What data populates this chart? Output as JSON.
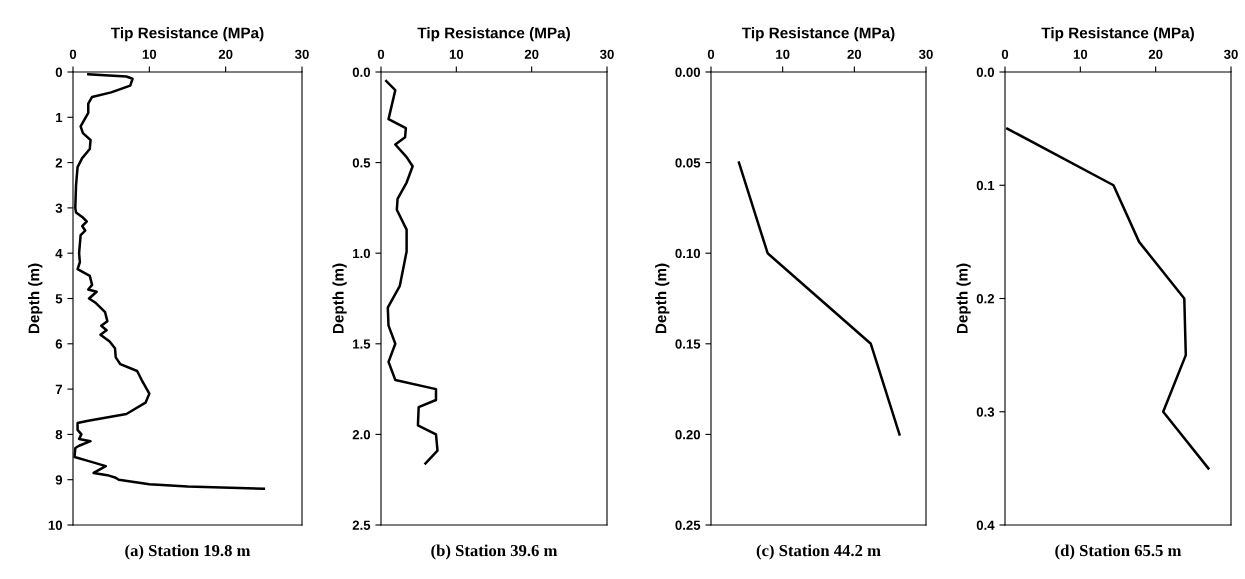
{
  "chart_data": [
    {
      "type": "line",
      "xlabel": "Tip Resistance (MPa)",
      "ylabel": "Depth (m)",
      "xlim": [
        0,
        30
      ],
      "xticks": [
        0,
        10,
        20,
        30
      ],
      "ylim": [
        10,
        0
      ],
      "yticks": [
        0,
        1,
        2,
        3,
        4,
        5,
        6,
        7,
        8,
        9,
        10
      ],
      "annotations": [
        "(a) Station 19.8 m"
      ],
      "series": [
        {
          "color": "#000000",
          "x": [
            2.0,
            7,
            7.8,
            7.5,
            5,
            2.5,
            2,
            2,
            1.5,
            1,
            1.3,
            2.3,
            2.2,
            1.2,
            0.6,
            0.4,
            0.3,
            0.4,
            1.2,
            1.8,
            1.2,
            1.6,
            1,
            0.8,
            0.9,
            0.6,
            2.2,
            2.5,
            2,
            3.1,
            2.1,
            3.0,
            4.2,
            4.5,
            3.7,
            4.4,
            3.6,
            4.8,
            5.5,
            5.6,
            6.2,
            8.4,
            9,
            10,
            9.5,
            7,
            2,
            0.6,
            0.6,
            1.1,
            0.8,
            2.3,
            0.8,
            0.3,
            0.2,
            2.3,
            4.3,
            2.7,
            4.5,
            5.5,
            6,
            10,
            15,
            25
          ],
          "values": [
            0.05,
            0.1,
            0.15,
            0.3,
            0.45,
            0.55,
            0.7,
            0.9,
            1.05,
            1.2,
            1.35,
            1.5,
            1.7,
            1.9,
            2.1,
            2.5,
            3.0,
            3.1,
            3.2,
            3.3,
            3.4,
            3.5,
            3.6,
            4.0,
            4.2,
            4.35,
            4.5,
            4.7,
            4.8,
            4.85,
            5.0,
            5.1,
            5.3,
            5.5,
            5.6,
            5.7,
            5.8,
            5.95,
            6.1,
            6.3,
            6.45,
            6.6,
            6.8,
            7.1,
            7.3,
            7.55,
            7.7,
            7.75,
            7.9,
            8.0,
            8.1,
            8.15,
            8.25,
            8.3,
            8.5,
            8.6,
            8.7,
            8.85,
            8.9,
            8.95,
            9.0,
            9.1,
            9.15,
            9.2
          ]
        }
      ]
    },
    {
      "type": "line",
      "xlabel": "Tip Resistance (MPa)",
      "ylabel": "Depth (m)",
      "xlim": [
        0,
        30
      ],
      "xticks": [
        0,
        10,
        20,
        30
      ],
      "ylim": [
        2.5,
        0
      ],
      "yticks": [
        {
          "value": 0,
          "label": "0.0"
        },
        {
          "value": 0.5,
          "label": "0.5"
        },
        {
          "value": 1,
          "label": "1.0"
        },
        {
          "value": 1.5,
          "label": "1.5"
        },
        {
          "value": 2,
          "label": "2.0"
        },
        {
          "value": 2.5,
          "label": "2.5"
        }
      ],
      "annotations": [
        "(b) Station 39.6 m"
      ],
      "series": [
        {
          "color": "#000000",
          "x": [
            0.7,
            1.9,
            1.0,
            3.3,
            3.2,
            1.9,
            3.4,
            4.2,
            3.4,
            2.2,
            2.1,
            3.4,
            3.4,
            2.5,
            0.9,
            1.0,
            1.9,
            1.0,
            1.9,
            7.3,
            7.3,
            5.0,
            4.9,
            7.3,
            7.5,
            5.9
          ],
          "values": [
            0.05,
            0.1,
            0.26,
            0.31,
            0.36,
            0.4,
            0.47,
            0.52,
            0.61,
            0.7,
            0.76,
            0.87,
            0.99,
            1.18,
            1.3,
            1.4,
            1.5,
            1.6,
            1.7,
            1.75,
            1.81,
            1.85,
            1.95,
            2.0,
            2.09,
            2.16
          ]
        }
      ]
    },
    {
      "type": "line",
      "xlabel": "Tip Resistance (MPa)",
      "ylabel": "Depth (m)",
      "xlim": [
        0,
        30
      ],
      "xticks": [
        0,
        10,
        20,
        30
      ],
      "ylim": [
        0.25,
        0
      ],
      "yticks": [
        {
          "value": 0,
          "label": "0.00"
        },
        {
          "value": 0.05,
          "label": "0.05"
        },
        {
          "value": 0.1,
          "label": "0.10"
        },
        {
          "value": 0.15,
          "label": "0.15"
        },
        {
          "value": 0.2,
          "label": "0.20"
        },
        {
          "value": 0.25,
          "label": "0.25"
        }
      ],
      "annotations": [
        "(c) Station 44.2 m"
      ],
      "series": [
        {
          "color": "#000000",
          "x": [
            3.9,
            7.9,
            22.3,
            26.3
          ],
          "values": [
            0.05,
            0.1,
            0.15,
            0.2
          ]
        }
      ]
    },
    {
      "type": "line",
      "xlabel": "Tip Resistance (MPa)",
      "ylabel": "Depth (m)",
      "xlim": [
        0,
        30
      ],
      "xticks": [
        0,
        10,
        20,
        30
      ],
      "ylim": [
        0.4,
        0
      ],
      "yticks": [
        {
          "value": 0,
          "label": "0.0"
        },
        {
          "value": 0.1,
          "label": "0.1"
        },
        {
          "value": 0.2,
          "label": "0.2"
        },
        {
          "value": 0.3,
          "label": "0.3"
        },
        {
          "value": 0.4,
          "label": "0.4"
        }
      ],
      "annotations": [
        "(d) Station 65.5 m"
      ],
      "series": [
        {
          "color": "#000000",
          "x": [
            0.3,
            14.4,
            17.8,
            23.8,
            24,
            21,
            27
          ],
          "values": [
            0.05,
            0.1,
            0.15,
            0.2,
            0.25,
            0.3,
            0.35
          ]
        }
      ]
    }
  ]
}
